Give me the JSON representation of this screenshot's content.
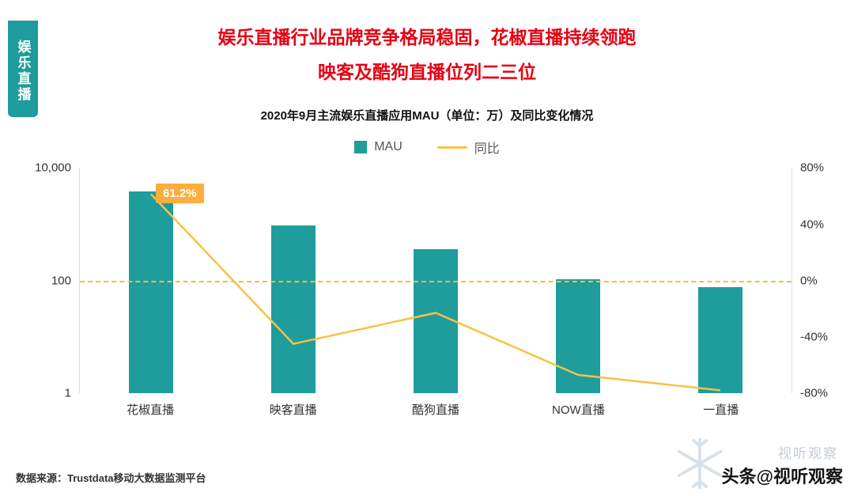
{
  "page": {
    "side_tab": "娱乐直播",
    "title_line1": "娱乐直播行业品牌竞争格局稳固，花椒直播持续领跑",
    "title_line2": "映客及酷狗直播位列二三位",
    "source": "数据来源：Trustdata移动大数据监测平台",
    "watermark_text": "头条@视听观察",
    "watermark_faint": "视听观察"
  },
  "chart_data": {
    "type": "bar+line",
    "title": "2020年9月主流娱乐直播应用MAU（单位：万）及同比变化情况",
    "categories": [
      "花椒直播",
      "映客直播",
      "酷狗直播",
      "NOW直播",
      "一直播"
    ],
    "series": [
      {
        "name": "MAU",
        "type": "bar",
        "axis": "left",
        "unit": "万",
        "values": [
          3900,
          950,
          360,
          105,
          78
        ]
      },
      {
        "name": "同比",
        "type": "line",
        "axis": "right",
        "unit": "%",
        "values_pct": [
          61.2,
          -45,
          -23,
          -67,
          -78
        ]
      }
    ],
    "left_axis": {
      "scale": "log10",
      "range": [
        1,
        10000
      ],
      "ticks": [
        {
          "label": "10,000",
          "value": 10000
        },
        {
          "label": "100",
          "value": 100
        },
        {
          "label": "1",
          "value": 1
        }
      ]
    },
    "right_axis": {
      "scale": "linear",
      "range_pct": [
        -80,
        80
      ],
      "ticks": [
        {
          "label": "80%",
          "value": 80
        },
        {
          "label": "40%",
          "value": 40
        },
        {
          "label": "0%",
          "value": 0
        },
        {
          "label": "-40%",
          "value": -40
        },
        {
          "label": "-80%",
          "value": -80
        }
      ]
    },
    "annotation": {
      "text": "61.2%",
      "category_index": 0
    },
    "zero_line": {
      "style": "dashed",
      "value_pct": 0
    },
    "legend": [
      "MAU",
      "同比"
    ],
    "legend_position": "top-center",
    "grid": "off",
    "colors": {
      "bar": "#1f9c9c",
      "line": "#f7c243",
      "annotation_bg": "#f9ae3d",
      "zero_line": "#f2bf3a",
      "title": "#e60012",
      "tab_bg": "#1f9c9c"
    }
  }
}
